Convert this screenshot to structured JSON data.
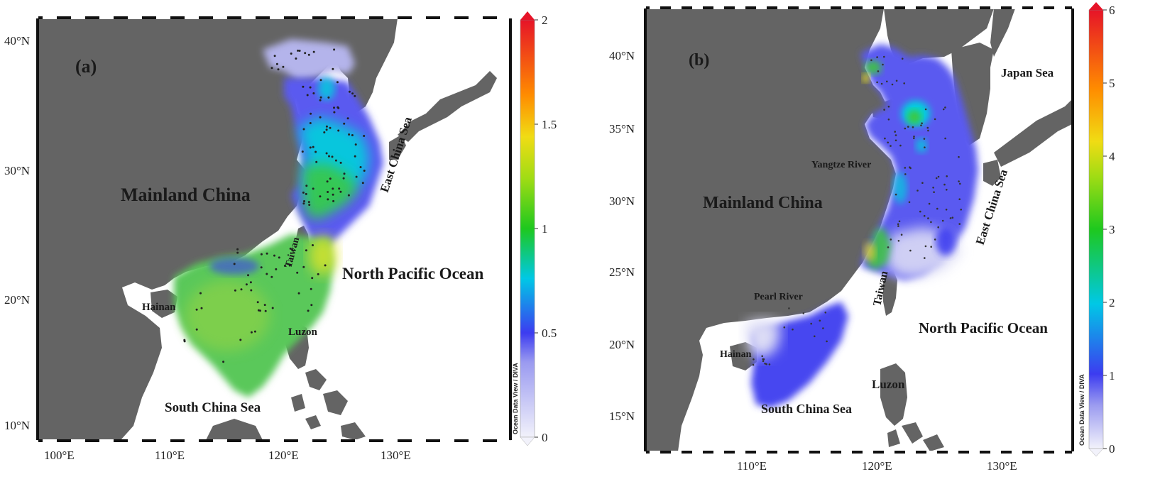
{
  "panels": [
    {
      "id": "a",
      "panel_label": "(a)",
      "lat_ticks": [
        "40°N",
        "30°N",
        "20°N",
        "10°N"
      ],
      "lon_ticks": [
        "100°E",
        "110°E",
        "120°E",
        "130°E"
      ],
      "place_labels": {
        "mainland": "Mainland China",
        "ocean": "North Pacific Ocean",
        "ecs": "East China Sea",
        "scs": "South China Sea",
        "taiwan": "Taiwan",
        "hainan": "Hainan",
        "luzon": "Luzon"
      },
      "colorbar": {
        "ticks": [
          "0",
          "0.5",
          "1",
          "1.5",
          "2"
        ],
        "min": 0,
        "max": 2
      },
      "watermark": "Ocean Data View / DIVA"
    },
    {
      "id": "b",
      "panel_label": "(b)",
      "lat_ticks": [
        "40°N",
        "35°N",
        "30°N",
        "25°N",
        "20°N",
        "15°N"
      ],
      "lon_ticks": [
        "110°E",
        "120°E",
        "130°E"
      ],
      "place_labels": {
        "mainland": "Mainland China",
        "ocean": "North Pacific Ocean",
        "ecs": "East China Sea",
        "scs": "South China Sea",
        "taiwan": "Taiwan",
        "hainan": "Hainan",
        "luzon": "Luzon",
        "japan_sea": "Japan Sea",
        "yangtze": "Yangtze River",
        "pearl": "Pearl River"
      },
      "colorbar": {
        "ticks": [
          "0",
          "1",
          "2",
          "3",
          "4",
          "5",
          "6"
        ],
        "min": 0,
        "max": 6
      },
      "watermark": "Ocean Data View / DIVA"
    }
  ],
  "colors": {
    "land": "#646464",
    "sea": "#ffffff",
    "low": "#e6e6fa",
    "blue": "#3c3cf0",
    "cyan": "#00d2dc",
    "green": "#3cc83c",
    "yellow": "#f0e614",
    "orange": "#ff8c00",
    "red": "#e61428"
  }
}
